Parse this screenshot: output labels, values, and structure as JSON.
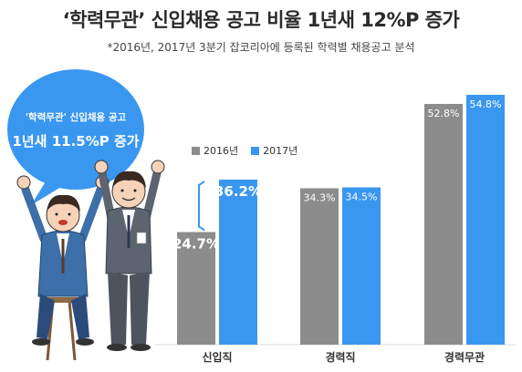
{
  "header": {
    "title": "‘학력무관’ 신입채용 공고 비율 1년새 12%P 증가",
    "subtitle": "*2016년, 2017년 3분기 잡코리아에 등록된 학력별 채용공고 분석"
  },
  "bubble": {
    "line1": "'학력무관' 신입채용 공고",
    "line2": "1년새 11.5%P 증가"
  },
  "colors": {
    "series_2016": "#8c8c8c",
    "series_2017": "#3a97f0",
    "bubble": "#3a97f0"
  },
  "chart_data": {
    "type": "bar",
    "categories": [
      "신입직",
      "경력직",
      "경력무관"
    ],
    "series": [
      {
        "name": "2016년",
        "values": [
          24.7,
          34.3,
          52.8
        ]
      },
      {
        "name": "2017년",
        "values": [
          36.2,
          34.5,
          54.8
        ]
      }
    ],
    "data_labels": [
      [
        "24.7%",
        "34.3%",
        "52.8%"
      ],
      [
        "36.2%",
        "34.5%",
        "54.8%"
      ]
    ],
    "ylim": [
      0,
      60
    ],
    "legend": "top-left",
    "grid": false
  }
}
